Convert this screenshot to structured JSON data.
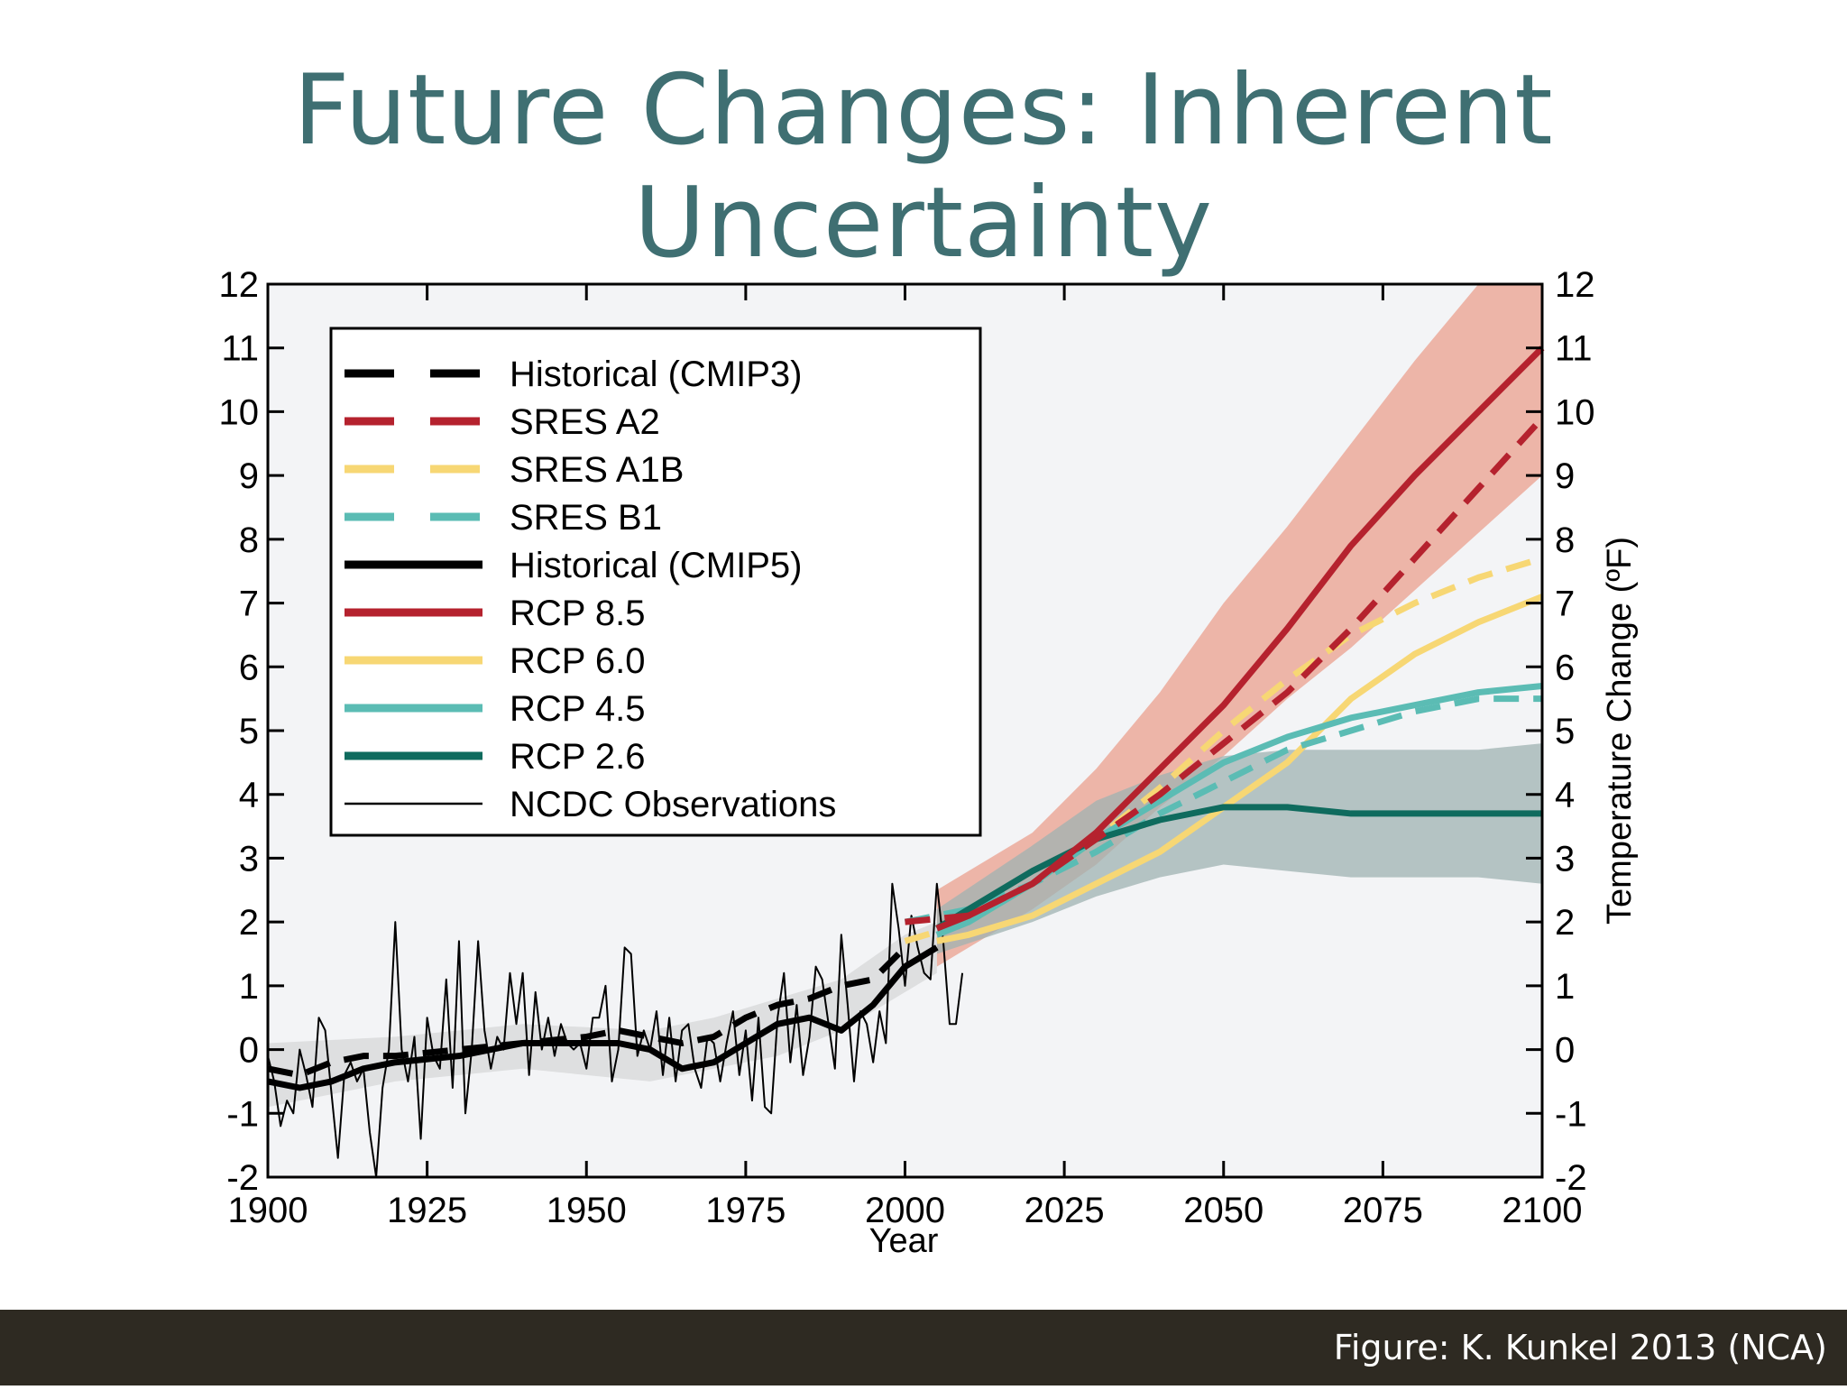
{
  "slide": {
    "title": "Future Changes: Inherent Uncertainty",
    "credit": "Figure: K. Kunkel 2013 (NCA)"
  },
  "colors": {
    "title": "#3f6f72",
    "footer": "#2e2a22",
    "cmip3": "#000000",
    "sres_a2": "#b5222e",
    "sres_a1b": "#f7d774",
    "sres_b1": "#5bbcb4",
    "cmip5": "#000000",
    "rcp85": "#b5222e",
    "rcp60": "#f7d774",
    "rcp45": "#5bbcb4",
    "rcp26": "#0f6b5e",
    "ncdc": "#000000",
    "band_rcp85": "#eba99a",
    "band_rcp26": "#9fb3b1",
    "band_hist": "#d9dadc",
    "plot_bg": "#f3f4f6"
  },
  "chart_data": {
    "type": "line",
    "xlabel": "Year",
    "ylabel": "Temperature Change (ºF)",
    "xlim": [
      1900,
      2100
    ],
    "ylim": [
      -2,
      12
    ],
    "xticks": [
      "1900",
      "1925",
      "1950",
      "1975",
      "2000",
      "2025",
      "2050",
      "2075",
      "2100"
    ],
    "yticks": [
      "-2",
      "-1",
      "0",
      "1",
      "2",
      "3",
      "4",
      "5",
      "6",
      "7",
      "8",
      "9",
      "10",
      "11",
      "12"
    ],
    "legend_position": "top-left",
    "grid": false,
    "bands": [
      {
        "id": "rcp85",
        "x": [
          2005,
          2020,
          2030,
          2040,
          2050,
          2060,
          2070,
          2080,
          2090,
          2100
        ],
        "low": [
          1.3,
          2.2,
          2.9,
          3.8,
          4.6,
          5.5,
          6.3,
          7.2,
          8.1,
          9.0
        ],
        "high": [
          2.5,
          3.4,
          4.4,
          5.6,
          7.0,
          8.2,
          9.5,
          10.8,
          12.0,
          12.0
        ]
      },
      {
        "id": "rcp26",
        "x": [
          2005,
          2020,
          2030,
          2040,
          2050,
          2060,
          2070,
          2080,
          2090,
          2100
        ],
        "low": [
          1.5,
          2.0,
          2.4,
          2.7,
          2.9,
          2.8,
          2.7,
          2.7,
          2.7,
          2.6
        ],
        "high": [
          2.2,
          3.2,
          3.9,
          4.3,
          4.6,
          4.7,
          4.7,
          4.7,
          4.7,
          4.8
        ]
      },
      {
        "id": "hist",
        "x": [
          1900,
          1920,
          1940,
          1960,
          1970,
          1980,
          1990,
          2000,
          2005
        ],
        "low": [
          -0.9,
          -0.5,
          -0.3,
          -0.5,
          -0.3,
          -0.1,
          0.3,
          0.9,
          1.2
        ],
        "high": [
          0.1,
          0.2,
          0.4,
          0.3,
          0.5,
          0.8,
          1.1,
          1.8,
          2.0
        ]
      }
    ],
    "series": [
      {
        "name": "Historical (CMIP3)",
        "style": "dashed",
        "width": 7,
        "x": [
          1900,
          1905,
          1910,
          1915,
          1920,
          1930,
          1940,
          1950,
          1955,
          1960,
          1965,
          1970,
          1975,
          1980,
          1985,
          1990,
          1995,
          2000
        ],
        "y": [
          -0.3,
          -0.4,
          -0.2,
          -0.1,
          -0.1,
          0.0,
          0.1,
          0.2,
          0.3,
          0.2,
          0.1,
          0.2,
          0.5,
          0.7,
          0.8,
          1.0,
          1.1,
          1.6
        ]
      },
      {
        "name": "SRES A2",
        "style": "dashed",
        "width": 7,
        "x": [
          2000,
          2010,
          2020,
          2030,
          2040,
          2050,
          2060,
          2070,
          2080,
          2090,
          2100
        ],
        "y": [
          2.0,
          2.1,
          2.6,
          3.3,
          4.0,
          4.8,
          5.6,
          6.6,
          7.7,
          8.8,
          9.9
        ]
      },
      {
        "name": "SRES A1B",
        "style": "dashed",
        "width": 7,
        "x": [
          2000,
          2010,
          2020,
          2030,
          2040,
          2050,
          2060,
          2070,
          2080,
          2090,
          2100
        ],
        "y": [
          1.7,
          2.0,
          2.6,
          3.3,
          4.1,
          5.0,
          5.8,
          6.5,
          7.0,
          7.4,
          7.7
        ]
      },
      {
        "name": "SRES B1",
        "style": "dashed",
        "width": 7,
        "x": [
          2000,
          2010,
          2020,
          2030,
          2040,
          2050,
          2060,
          2070,
          2080,
          2090,
          2100
        ],
        "y": [
          2.0,
          2.2,
          2.6,
          3.1,
          3.7,
          4.2,
          4.7,
          5.0,
          5.3,
          5.5,
          5.5
        ]
      },
      {
        "name": "Historical (CMIP5)",
        "style": "solid",
        "width": 7,
        "x": [
          1900,
          1905,
          1910,
          1915,
          1920,
          1930,
          1940,
          1950,
          1955,
          1960,
          1965,
          1970,
          1975,
          1980,
          1985,
          1990,
          1995,
          2000,
          2005
        ],
        "y": [
          -0.5,
          -0.6,
          -0.5,
          -0.3,
          -0.2,
          -0.1,
          0.1,
          0.1,
          0.1,
          0.0,
          -0.3,
          -0.2,
          0.1,
          0.4,
          0.5,
          0.3,
          0.7,
          1.3,
          1.6
        ]
      },
      {
        "name": "RCP 8.5",
        "style": "solid",
        "width": 7,
        "x": [
          2005,
          2010,
          2020,
          2030,
          2040,
          2050,
          2060,
          2070,
          2080,
          2090,
          2100
        ],
        "y": [
          1.9,
          2.1,
          2.6,
          3.4,
          4.4,
          5.4,
          6.6,
          7.9,
          9.0,
          10.0,
          11.0
        ]
      },
      {
        "name": "RCP 6.0",
        "style": "solid",
        "width": 7,
        "x": [
          2005,
          2010,
          2020,
          2030,
          2040,
          2050,
          2060,
          2070,
          2080,
          2090,
          2100
        ],
        "y": [
          1.7,
          1.8,
          2.1,
          2.6,
          3.1,
          3.8,
          4.5,
          5.5,
          6.2,
          6.7,
          7.1
        ]
      },
      {
        "name": "RCP 4.5",
        "style": "solid",
        "width": 7,
        "x": [
          2005,
          2010,
          2020,
          2030,
          2040,
          2050,
          2060,
          2070,
          2080,
          2090,
          2100
        ],
        "y": [
          1.8,
          2.0,
          2.6,
          3.3,
          3.9,
          4.5,
          4.9,
          5.2,
          5.4,
          5.6,
          5.7
        ]
      },
      {
        "name": "RCP 2.6",
        "style": "solid",
        "width": 7,
        "x": [
          2005,
          2010,
          2020,
          2030,
          2040,
          2050,
          2060,
          2070,
          2080,
          2090,
          2100
        ],
        "y": [
          1.9,
          2.2,
          2.8,
          3.3,
          3.6,
          3.8,
          3.8,
          3.7,
          3.7,
          3.7,
          3.7
        ]
      },
      {
        "name": "NCDC Observations",
        "style": "solid",
        "width": 2,
        "x": [
          1900,
          1901,
          1902,
          1903,
          1904,
          1905,
          1906,
          1907,
          1908,
          1909,
          1910,
          1911,
          1912,
          1913,
          1914,
          1915,
          1916,
          1917,
          1918,
          1919,
          1920,
          1921,
          1922,
          1923,
          1924,
          1925,
          1926,
          1927,
          1928,
          1929,
          1930,
          1931,
          1932,
          1933,
          1934,
          1935,
          1936,
          1937,
          1938,
          1939,
          1940,
          1941,
          1942,
          1943,
          1944,
          1945,
          1946,
          1947,
          1948,
          1949,
          1950,
          1951,
          1952,
          1953,
          1954,
          1955,
          1956,
          1957,
          1958,
          1959,
          1960,
          1961,
          1962,
          1963,
          1964,
          1965,
          1966,
          1967,
          1968,
          1969,
          1970,
          1971,
          1972,
          1973,
          1974,
          1975,
          1976,
          1977,
          1978,
          1979,
          1980,
          1981,
          1982,
          1983,
          1984,
          1985,
          1986,
          1987,
          1988,
          1989,
          1990,
          1991,
          1992,
          1993,
          1994,
          1995,
          1996,
          1997,
          1998,
          1999,
          2000,
          2001,
          2002,
          2003,
          2004,
          2005,
          2006,
          2007,
          2008,
          2009
        ],
        "y": [
          -0.1,
          -0.5,
          -1.2,
          -0.8,
          -1.0,
          0.0,
          -0.4,
          -0.9,
          0.5,
          0.3,
          -0.7,
          -1.7,
          -0.4,
          -0.2,
          -0.5,
          -0.3,
          -1.3,
          -2.0,
          -0.6,
          0.0,
          2.0,
          0.0,
          -0.5,
          0.2,
          -1.4,
          0.5,
          -0.1,
          -0.3,
          1.1,
          -0.6,
          1.7,
          -1.0,
          0.0,
          1.7,
          0.3,
          -0.3,
          0.2,
          0.0,
          1.2,
          0.4,
          1.2,
          -0.4,
          0.9,
          0.0,
          0.5,
          -0.1,
          0.4,
          0.1,
          0.0,
          0.1,
          -0.3,
          0.5,
          0.5,
          1.0,
          -0.5,
          0.0,
          1.6,
          1.5,
          -0.1,
          0.3,
          0.0,
          0.6,
          -0.4,
          0.5,
          -0.5,
          0.3,
          0.4,
          -0.3,
          -0.6,
          0.2,
          0.1,
          -0.5,
          0.1,
          0.6,
          -0.4,
          0.3,
          -0.8,
          0.5,
          -0.9,
          -1.0,
          0.5,
          1.2,
          -0.2,
          0.7,
          -0.4,
          0.2,
          1.3,
          1.1,
          0.4,
          -0.3,
          1.8,
          0.7,
          -0.5,
          0.6,
          0.4,
          -0.2,
          0.6,
          0.1,
          2.6,
          1.9,
          1.0,
          2.1,
          1.6,
          1.2,
          1.1,
          2.6,
          1.7,
          0.4,
          0.4,
          1.2
        ]
      }
    ]
  }
}
